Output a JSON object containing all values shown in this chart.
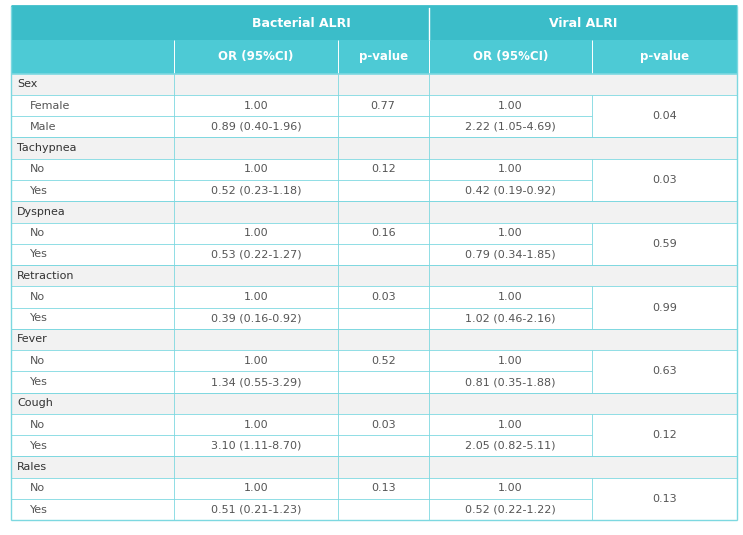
{
  "figsize": [
    7.43,
    5.35
  ],
  "dpi": 100,
  "header_bg": "#3bbdc9",
  "header_text_color": "#ffffff",
  "header_sub_bg": "#4dcad5",
  "category_bg": "#f2f2f2",
  "row_bg": "#ffffff",
  "line_color": "#7dd8e0",
  "data_text_color": "#555555",
  "category_text_color": "#333333",
  "sections": [
    {
      "category": "Sex",
      "rows": [
        [
          "Female",
          "1.00",
          "0.77",
          "1.00",
          "0.04"
        ],
        [
          "Male",
          "0.89 (0.40-1.96)",
          "",
          "2.22 (1.05-4.69)",
          ""
        ]
      ]
    },
    {
      "category": "Tachypnea",
      "rows": [
        [
          "No",
          "1.00",
          "0.12",
          "1.00",
          "0.03"
        ],
        [
          "Yes",
          "0.52 (0.23-1.18)",
          "",
          "0.42 (0.19-0.92)",
          ""
        ]
      ]
    },
    {
      "category": "Dyspnea",
      "rows": [
        [
          "No",
          "1.00",
          "0.16",
          "1.00",
          "0.59"
        ],
        [
          "Yes",
          "0.53 (0.22-1.27)",
          "",
          "0.79 (0.34-1.85)",
          ""
        ]
      ]
    },
    {
      "category": "Retraction",
      "rows": [
        [
          "No",
          "1.00",
          "0.03",
          "1.00",
          "0.99"
        ],
        [
          "Yes",
          "0.39 (0.16-0.92)",
          "",
          "1.02 (0.46-2.16)",
          ""
        ]
      ]
    },
    {
      "category": "Fever",
      "rows": [
        [
          "No",
          "1.00",
          "0.52",
          "1.00",
          "0.63"
        ],
        [
          "Yes",
          "1.34 (0.55-3.29)",
          "",
          "0.81 (0.35-1.88)",
          ""
        ]
      ]
    },
    {
      "category": "Cough",
      "rows": [
        [
          "No",
          "1.00",
          "0.03",
          "1.00",
          "0.12"
        ],
        [
          "Yes",
          "3.10 (1.11-8.70)",
          "",
          "2.05 (0.82-5.11)",
          ""
        ]
      ]
    },
    {
      "category": "Rales",
      "rows": [
        [
          "No",
          "1.00",
          "0.13",
          "1.00",
          "0.13"
        ],
        [
          "Yes",
          "0.51 (0.21-1.23)",
          "",
          "0.52 (0.22-1.22)",
          ""
        ]
      ]
    }
  ]
}
